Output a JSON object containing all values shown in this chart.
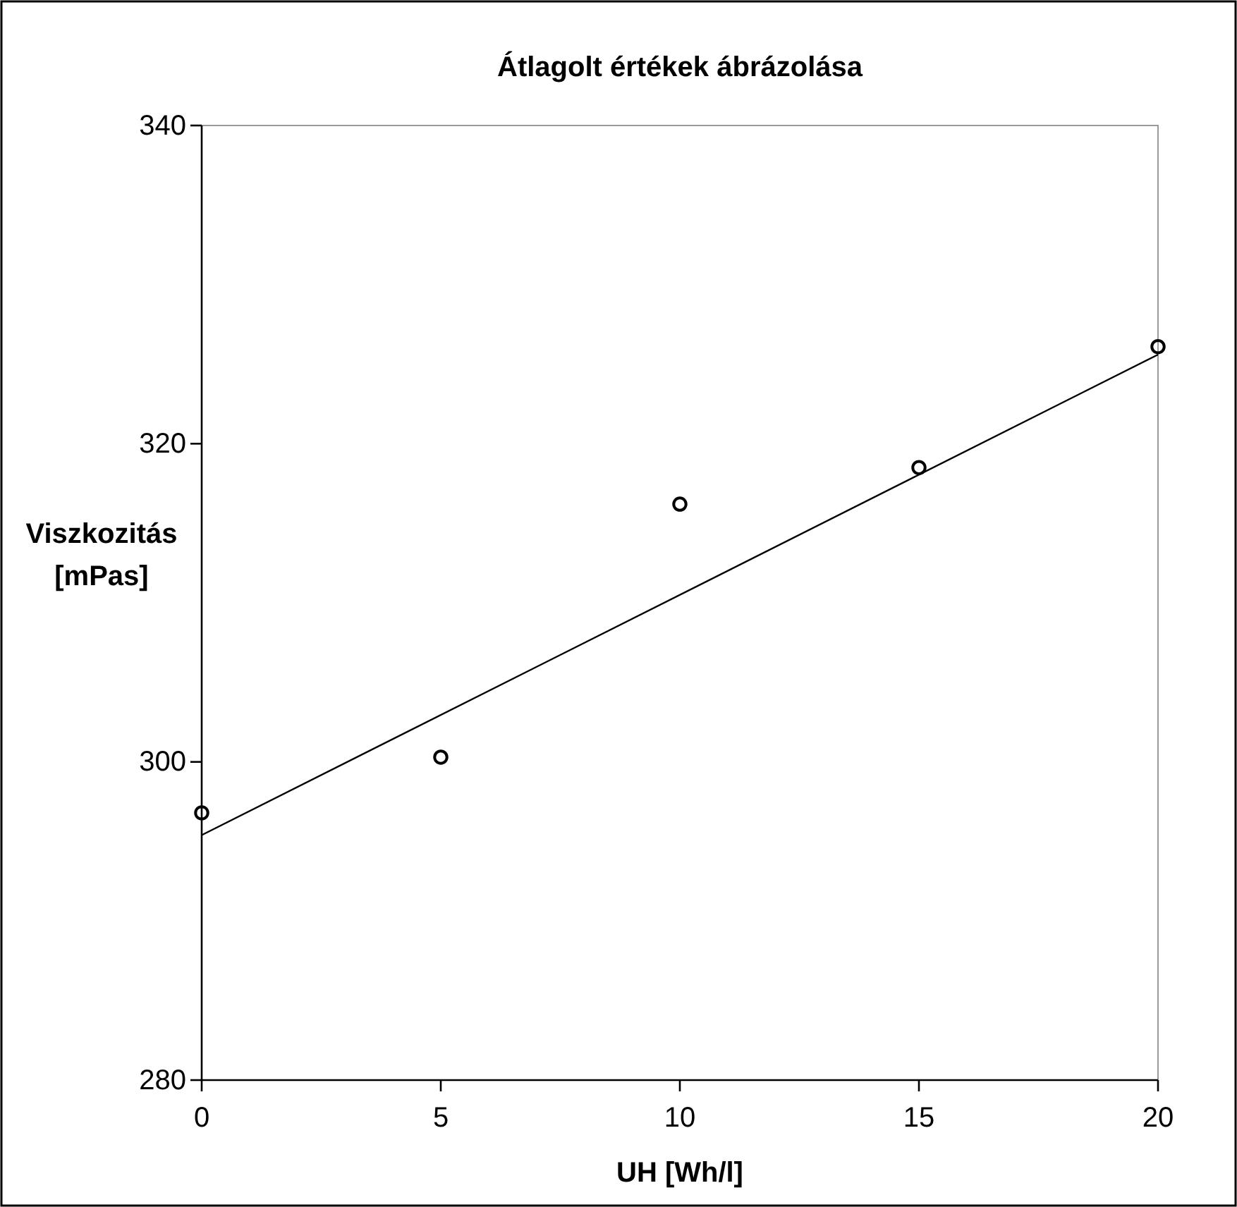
{
  "chart_data": {
    "type": "scatter",
    "title": "Átlagolt értékek ábrázolása",
    "xlabel": "UH [Wh/l]",
    "ylabel": "Viszkozitás [mPas]",
    "x": [
      0,
      5,
      10,
      15,
      20
    ],
    "series": [
      {
        "color": "#000000",
        "marker": "circle",
        "values": [
          296.8,
          300.3,
          316.2,
          318.5,
          326.1
        ]
      },
      {
        "type": "line",
        "color": "#000000",
        "line_style": "solid",
        "x": [
          0,
          20
        ],
        "values": [
          295.4,
          325.6
        ]
      }
    ],
    "xlim": [
      0,
      20
    ],
    "xticks": [
      0,
      5,
      10,
      15,
      20
    ],
    "ylim": [
      280,
      340
    ],
    "yticks": [
      280,
      300,
      320,
      340
    ],
    "grid": false
  }
}
